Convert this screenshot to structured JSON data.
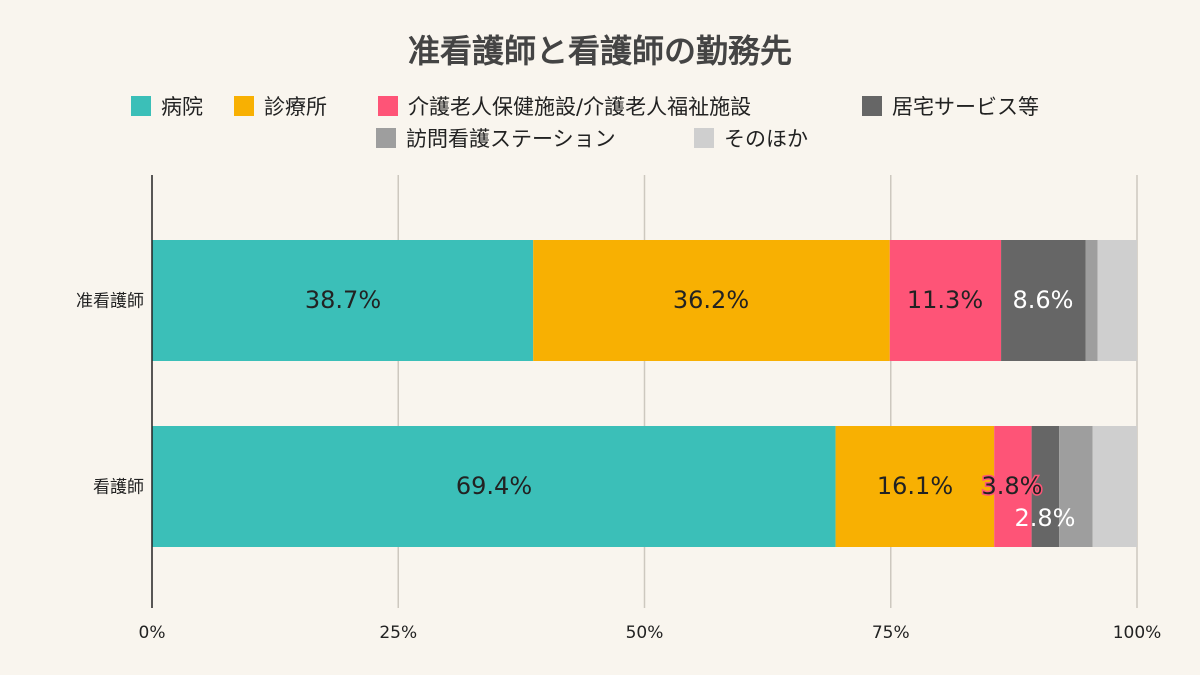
{
  "chart_data": {
    "type": "bar",
    "orientation": "horizontal",
    "stacked": true,
    "title": "准看護師と看護師の勤務先",
    "categories": [
      "准看護師",
      "看護師"
    ],
    "series": [
      {
        "name": "病院",
        "color": "#3bbfb8",
        "values": [
          38.7,
          69.4
        ],
        "labels": [
          "38.7%",
          "69.4%"
        ],
        "label_color": "#222222"
      },
      {
        "name": "診療所",
        "color": "#f8b002",
        "values": [
          36.2,
          16.1
        ],
        "labels": [
          "36.2%",
          "16.1%"
        ],
        "label_color": "#222222"
      },
      {
        "name": "介護老人保健施設/介護老人福祉施設",
        "color": "#fe5477",
        "values": [
          11.3,
          3.8
        ],
        "labels": [
          "11.3%",
          "3.8%"
        ],
        "label_color": "#222222"
      },
      {
        "name": "居宅サービス等",
        "color": "#666666",
        "values": [
          8.6,
          2.8
        ],
        "labels": [
          "8.6%",
          "2.8%"
        ],
        "label_color": "#ffffff"
      },
      {
        "name": "訪問看護ステーション",
        "color": "#9e9e9e",
        "values": [
          1.2,
          3.4
        ],
        "labels": [
          "",
          ""
        ],
        "label_color": "#222222"
      },
      {
        "name": "そのほか",
        "color": "#cfcfcf",
        "values": [
          4.0,
          4.5
        ],
        "labels": [
          "",
          ""
        ],
        "label_color": "#222222"
      }
    ],
    "x_ticks": [
      "0%",
      "25%",
      "50%",
      "75%",
      "100%"
    ],
    "xlim": [
      0,
      100
    ],
    "grid": true,
    "legend_position": "top"
  }
}
